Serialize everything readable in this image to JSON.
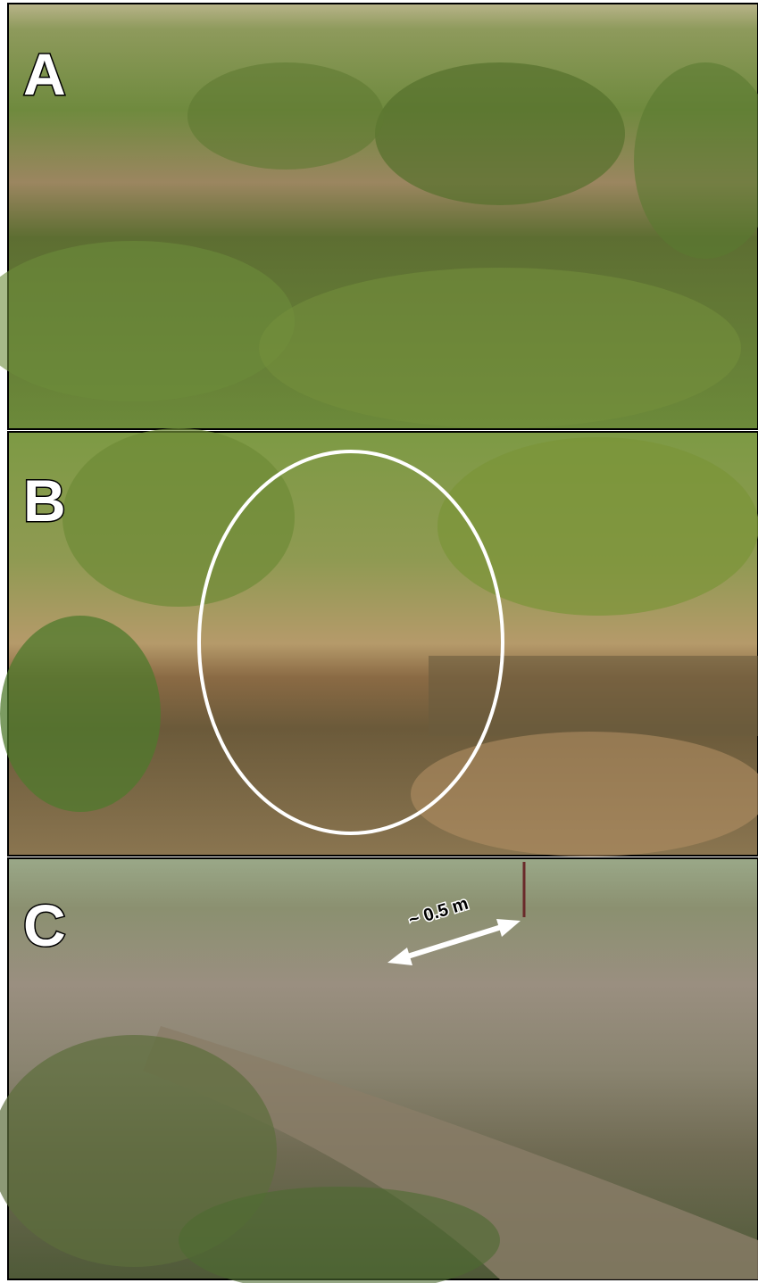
{
  "panels": [
    {
      "label": "A"
    },
    {
      "label": "B"
    },
    {
      "label": "C",
      "annotation": "~ 0.5 m"
    }
  ]
}
